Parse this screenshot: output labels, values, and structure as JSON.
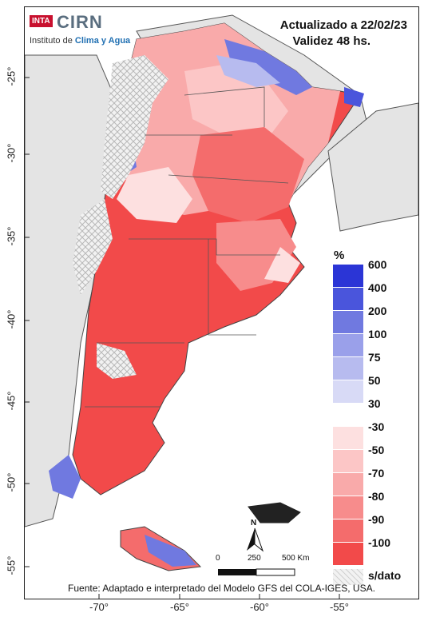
{
  "logo": {
    "badge": "INTA",
    "name": "CIRN",
    "institute_prefix": "Instituto de ",
    "institute_highlight": "Clima y Agua"
  },
  "header": {
    "updated": "Actualizado a 22/02/23",
    "validity": "Validez 48 hs."
  },
  "axes": {
    "y_ticks": [
      "-25°",
      "-30°",
      "-35°",
      "-40°",
      "-45°",
      "-50°",
      "-55°"
    ],
    "x_ticks": [
      "-70°",
      "-65°",
      "-60°",
      "-55°"
    ]
  },
  "legend": {
    "title": "%",
    "entries": [
      {
        "label": "600",
        "color": "#2b35d6"
      },
      {
        "label": "400",
        "color": "#4a55dc"
      },
      {
        "label": "200",
        "color": "#7079e0"
      },
      {
        "label": "100",
        "color": "#9aa0ea"
      },
      {
        "label": "75",
        "color": "#b7bbef"
      },
      {
        "label": "50",
        "color": "#d8daf6"
      },
      {
        "label": "30",
        "color": "#ffffff"
      },
      {
        "label": "-30",
        "color": "#fde0e0"
      },
      {
        "label": "-50",
        "color": "#fcc6c6"
      },
      {
        "label": "-70",
        "color": "#f9aaaa"
      },
      {
        "label": "-80",
        "color": "#f78c8c"
      },
      {
        "label": "-90",
        "color": "#f46c6c"
      },
      {
        "label": "-100",
        "color": "#f24a4a"
      }
    ],
    "no_data": "s/dato"
  },
  "scale_bar": {
    "labels": [
      "0",
      "250",
      "500 Km"
    ],
    "north": "N"
  },
  "source": "Fuente: Adaptado e interpretado del Modelo GFS del COLA-IGES, USA."
}
